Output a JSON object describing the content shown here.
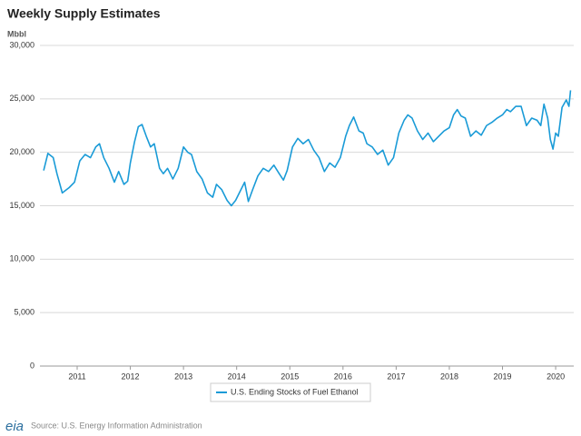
{
  "chart_data": {
    "type": "line",
    "title": "Weekly Supply Estimates",
    "y_axis_label": "Mbbl",
    "source": "Source: U.S. Energy Information Administration",
    "logo": "eia",
    "x": [
      2010.37,
      2010.45,
      2010.55,
      2010.62,
      2010.72,
      2010.85,
      2010.95,
      2011.05,
      2011.15,
      2011.25,
      2011.35,
      2011.42,
      2011.5,
      2011.6,
      2011.7,
      2011.78,
      2011.88,
      2011.95,
      2012.0,
      2012.08,
      2012.15,
      2012.22,
      2012.3,
      2012.38,
      2012.45,
      2012.55,
      2012.62,
      2012.7,
      2012.8,
      2012.9,
      2013.0,
      2013.08,
      2013.15,
      2013.25,
      2013.35,
      2013.45,
      2013.55,
      2013.62,
      2013.72,
      2013.82,
      2013.9,
      2013.98,
      2014.05,
      2014.15,
      2014.22,
      2014.3,
      2014.4,
      2014.5,
      2014.6,
      2014.7,
      2014.8,
      2014.88,
      2014.95,
      2015.05,
      2015.15,
      2015.25,
      2015.35,
      2015.45,
      2015.55,
      2015.65,
      2015.75,
      2015.85,
      2015.95,
      2016.05,
      2016.12,
      2016.2,
      2016.3,
      2016.38,
      2016.45,
      2016.55,
      2016.65,
      2016.75,
      2016.85,
      2016.95,
      2017.05,
      2017.15,
      2017.22,
      2017.3,
      2017.4,
      2017.5,
      2017.6,
      2017.7,
      2017.8,
      2017.9,
      2018.0,
      2018.08,
      2018.15,
      2018.22,
      2018.3,
      2018.4,
      2018.5,
      2018.6,
      2018.7,
      2018.8,
      2018.9,
      2019.0,
      2019.08,
      2019.15,
      2019.25,
      2019.35,
      2019.45,
      2019.55,
      2019.65,
      2019.72,
      2019.78,
      2019.85,
      2019.9,
      2019.95,
      2020.0,
      2020.05,
      2020.12,
      2020.2,
      2020.25,
      2020.28
    ],
    "series": [
      {
        "name": "U.S. Ending Stocks of Fuel Ethanol",
        "color": "#1a9bd7",
        "values": [
          18300,
          19900,
          19500,
          18000,
          16200,
          16700,
          17200,
          19200,
          19800,
          19500,
          20500,
          20800,
          19500,
          18500,
          17200,
          18200,
          17000,
          17300,
          19000,
          21000,
          22400,
          22600,
          21500,
          20500,
          20800,
          18500,
          18000,
          18500,
          17500,
          18500,
          20500,
          20000,
          19800,
          18200,
          17500,
          16200,
          15800,
          17000,
          16500,
          15500,
          15000,
          15500,
          16200,
          17200,
          15400,
          16500,
          17800,
          18500,
          18200,
          18800,
          18000,
          17400,
          18300,
          20500,
          21300,
          20800,
          21200,
          20200,
          19500,
          18200,
          19000,
          18600,
          19500,
          21500,
          22500,
          23300,
          22000,
          21800,
          20800,
          20500,
          19800,
          20200,
          18800,
          19500,
          21800,
          23000,
          23500,
          23200,
          22000,
          21200,
          21800,
          21000,
          21500,
          22000,
          22300,
          23500,
          24000,
          23400,
          23200,
          21500,
          22000,
          21600,
          22500,
          22800,
          23200,
          23500,
          24000,
          23800,
          24300,
          24300,
          22500,
          23200,
          23000,
          22500,
          24500,
          23200,
          21200,
          20300,
          21800,
          21500,
          24200,
          24900,
          24300,
          25800
        ]
      }
    ],
    "xlim": [
      2010.3,
      2020.34
    ],
    "xticks": [
      2011,
      2012,
      2013,
      2014,
      2015,
      2016,
      2017,
      2018,
      2019,
      2020
    ],
    "ylim": [
      0,
      30000
    ],
    "yticks": [
      0,
      {
        "value": 5000,
        "label": "5,000"
      },
      {
        "value": 10000,
        "label": "10,000"
      },
      {
        "value": 15000,
        "label": "15,000"
      },
      {
        "value": 20000,
        "label": "20,000"
      },
      {
        "value": 25000,
        "label": "25,000"
      },
      {
        "value": 30000,
        "label": "30,000"
      }
    ],
    "grid": true
  }
}
